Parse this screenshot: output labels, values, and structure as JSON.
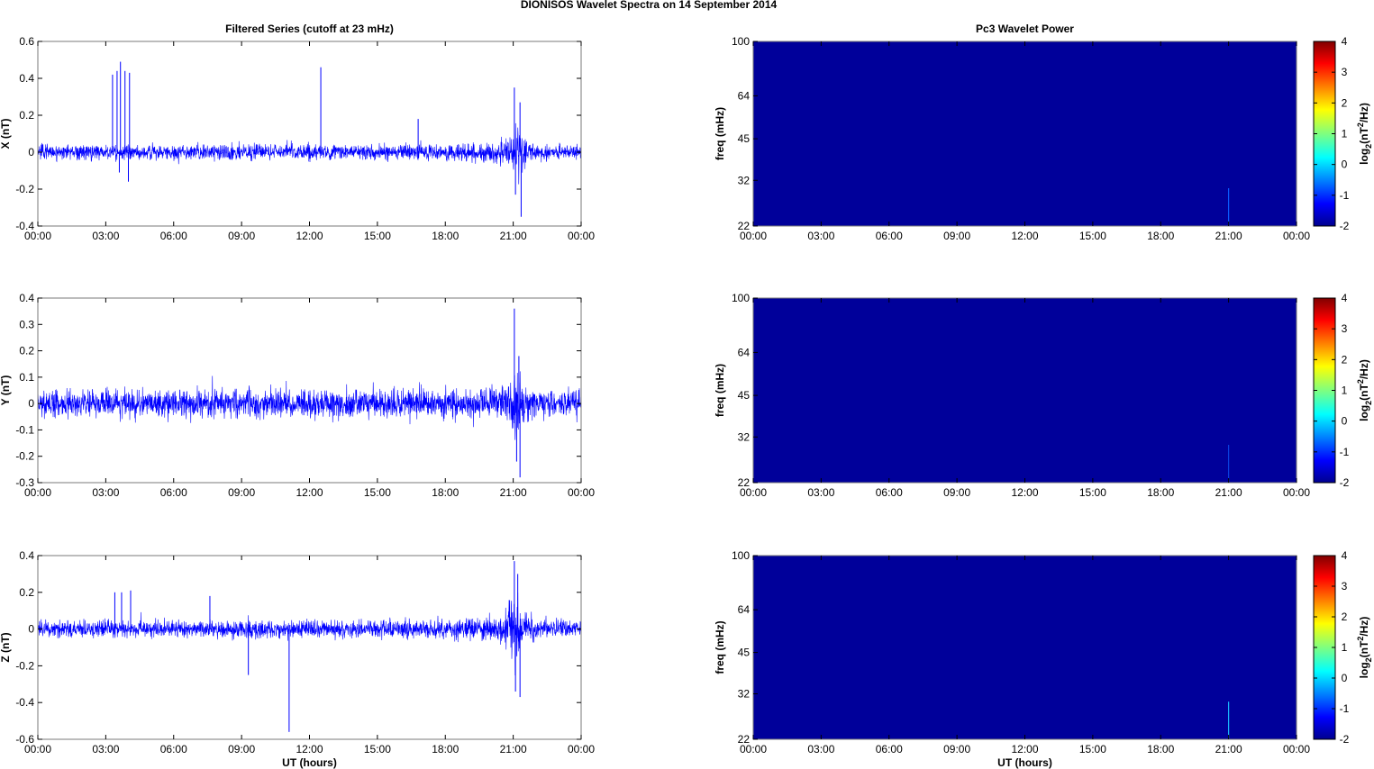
{
  "figure": {
    "title": "DIONISOS Wavelet Spectra on 14 September 2014"
  },
  "chart_data": [
    {
      "type": "line",
      "panel": "left-top",
      "title": "Filtered Series (cutoff at 23 mHz)",
      "xlabel": "",
      "ylabel": "X (nT)",
      "xticks": [
        "00:00",
        "03:00",
        "06:00",
        "09:00",
        "12:00",
        "15:00",
        "18:00",
        "21:00",
        "00:00"
      ],
      "xlim_hours": [
        0,
        24
      ],
      "yticks": [
        "-0.4",
        "-0.2",
        "0",
        "0.2",
        "0.4",
        "0.6"
      ],
      "ylim": [
        -0.4,
        0.6
      ],
      "line_color": "#0000ff",
      "noise_amplitude": 0.035,
      "envelope": [
        [
          0,
          0.035
        ],
        [
          17,
          0.04
        ],
        [
          20,
          0.045
        ],
        [
          20.8,
          0.07
        ],
        [
          21.2,
          0.15
        ],
        [
          21.6,
          0.06
        ],
        [
          22,
          0.04
        ],
        [
          24,
          0.035
        ]
      ],
      "spikes": [
        {
          "x": 3.3,
          "y": 0.42
        },
        {
          "x": 3.5,
          "y": 0.44
        },
        {
          "x": 3.65,
          "y": 0.49
        },
        {
          "x": 3.85,
          "y": 0.44
        },
        {
          "x": 4.05,
          "y": 0.43
        },
        {
          "x": 3.6,
          "y": -0.11
        },
        {
          "x": 4.0,
          "y": -0.16
        },
        {
          "x": 12.5,
          "y": 0.46
        },
        {
          "x": 16.8,
          "y": 0.18
        },
        {
          "x": 21.05,
          "y": 0.35
        },
        {
          "x": 21.3,
          "y": 0.27
        },
        {
          "x": 21.35,
          "y": -0.35
        },
        {
          "x": 21.1,
          "y": -0.23
        }
      ]
    },
    {
      "type": "line",
      "panel": "left-middle",
      "title": "",
      "xlabel": "",
      "ylabel": "Y (nT)",
      "xticks": [
        "00:00",
        "03:00",
        "06:00",
        "09:00",
        "12:00",
        "15:00",
        "18:00",
        "21:00",
        "00:00"
      ],
      "xlim_hours": [
        0,
        24
      ],
      "yticks": [
        "-0.3",
        "-0.2",
        "-0.1",
        "0",
        "0.1",
        "0.2",
        "0.3",
        "0.4"
      ],
      "ylim": [
        -0.3,
        0.4
      ],
      "line_color": "#0000ff",
      "noise_amplitude": 0.045,
      "envelope": [
        [
          0,
          0.045
        ],
        [
          20,
          0.05
        ],
        [
          20.8,
          0.07
        ],
        [
          21.2,
          0.14
        ],
        [
          21.6,
          0.06
        ],
        [
          22,
          0.045
        ],
        [
          24,
          0.045
        ]
      ],
      "spikes": [
        {
          "x": 21.05,
          "y": 0.36
        },
        {
          "x": 21.25,
          "y": 0.18
        },
        {
          "x": 21.3,
          "y": -0.28
        },
        {
          "x": 21.15,
          "y": -0.22
        }
      ]
    },
    {
      "type": "line",
      "panel": "left-bottom",
      "title": "",
      "xlabel": "UT (hours)",
      "ylabel": "Z (nT)",
      "xticks": [
        "00:00",
        "03:00",
        "06:00",
        "09:00",
        "12:00",
        "15:00",
        "18:00",
        "21:00",
        "00:00"
      ],
      "xlim_hours": [
        0,
        24
      ],
      "yticks": [
        "-0.6",
        "-0.4",
        "-0.2",
        "0",
        "0.2",
        "0.4"
      ],
      "ylim": [
        -0.6,
        0.4
      ],
      "line_color": "#0000ff",
      "noise_amplitude": 0.04,
      "envelope": [
        [
          0,
          0.04
        ],
        [
          18,
          0.045
        ],
        [
          20.5,
          0.06
        ],
        [
          21.1,
          0.2
        ],
        [
          21.5,
          0.07
        ],
        [
          22,
          0.045
        ],
        [
          24,
          0.04
        ]
      ],
      "spikes": [
        {
          "x": 3.4,
          "y": 0.2
        },
        {
          "x": 3.7,
          "y": 0.2
        },
        {
          "x": 4.1,
          "y": 0.21
        },
        {
          "x": 7.6,
          "y": 0.18
        },
        {
          "x": 9.3,
          "y": -0.25
        },
        {
          "x": 11.1,
          "y": -0.56
        },
        {
          "x": 21.05,
          "y": 0.37
        },
        {
          "x": 21.2,
          "y": 0.3
        },
        {
          "x": 21.3,
          "y": -0.37
        },
        {
          "x": 21.1,
          "y": -0.34
        }
      ]
    },
    {
      "type": "heatmap",
      "panel": "right-top",
      "title": "Pc3 Wavelet Power",
      "xlabel": "",
      "ylabel": "freq (mHz)",
      "xticks": [
        "00:00",
        "03:00",
        "06:00",
        "09:00",
        "12:00",
        "15:00",
        "18:00",
        "21:00",
        "00:00"
      ],
      "xlim_hours": [
        0,
        24
      ],
      "yticks": [
        "22",
        "32",
        "45",
        "64",
        "100"
      ],
      "ylim_mhz": [
        22,
        100
      ],
      "y_scale": "log",
      "background_color": "#00009a",
      "streak": {
        "x_hours": 21.0,
        "freq_top_mhz": 30,
        "color": "#0a5cff"
      },
      "colorbar": {
        "label_base": "log",
        "label_sub": "2",
        "label_mid": "(nT",
        "label_sup": "2",
        "label_end": "/Hz)",
        "ticks": [
          "-2",
          "-1",
          "0",
          "1",
          "2",
          "3",
          "4"
        ],
        "range": [
          -2,
          4
        ]
      }
    },
    {
      "type": "heatmap",
      "panel": "right-middle",
      "title": "",
      "xlabel": "",
      "ylabel": "freq (mHz)",
      "xticks": [
        "00:00",
        "03:00",
        "06:00",
        "09:00",
        "12:00",
        "15:00",
        "18:00",
        "21:00",
        "00:00"
      ],
      "xlim_hours": [
        0,
        24
      ],
      "yticks": [
        "22",
        "32",
        "45",
        "64",
        "100"
      ],
      "ylim_mhz": [
        22,
        100
      ],
      "y_scale": "log",
      "background_color": "#00009a",
      "streak": {
        "x_hours": 21.0,
        "freq_top_mhz": 30,
        "color": "#0a40e0"
      },
      "colorbar": {
        "label_base": "log",
        "label_sub": "2",
        "label_mid": "(nT",
        "label_sup": "2",
        "label_end": "/Hz)",
        "ticks": [
          "-2",
          "-1",
          "0",
          "1",
          "2",
          "3",
          "4"
        ],
        "range": [
          -2,
          4
        ]
      }
    },
    {
      "type": "heatmap",
      "panel": "right-bottom",
      "title": "",
      "xlabel": "UT (hours)",
      "ylabel": "freq (mHz)",
      "xticks": [
        "00:00",
        "03:00",
        "06:00",
        "09:00",
        "12:00",
        "15:00",
        "18:00",
        "21:00",
        "00:00"
      ],
      "xlim_hours": [
        0,
        24
      ],
      "yticks": [
        "22",
        "32",
        "45",
        "64",
        "100"
      ],
      "ylim_mhz": [
        22,
        100
      ],
      "y_scale": "log",
      "background_color": "#00009a",
      "streak": {
        "x_hours": 21.0,
        "freq_top_mhz": 30,
        "color": "#19b8ff"
      },
      "colorbar": {
        "label_base": "log",
        "label_sub": "2",
        "label_mid": "(nT",
        "label_sup": "2",
        "label_end": "/Hz)",
        "ticks": [
          "-2",
          "-1",
          "0",
          "1",
          "2",
          "3",
          "4"
        ],
        "range": [
          -2,
          4
        ]
      }
    }
  ]
}
